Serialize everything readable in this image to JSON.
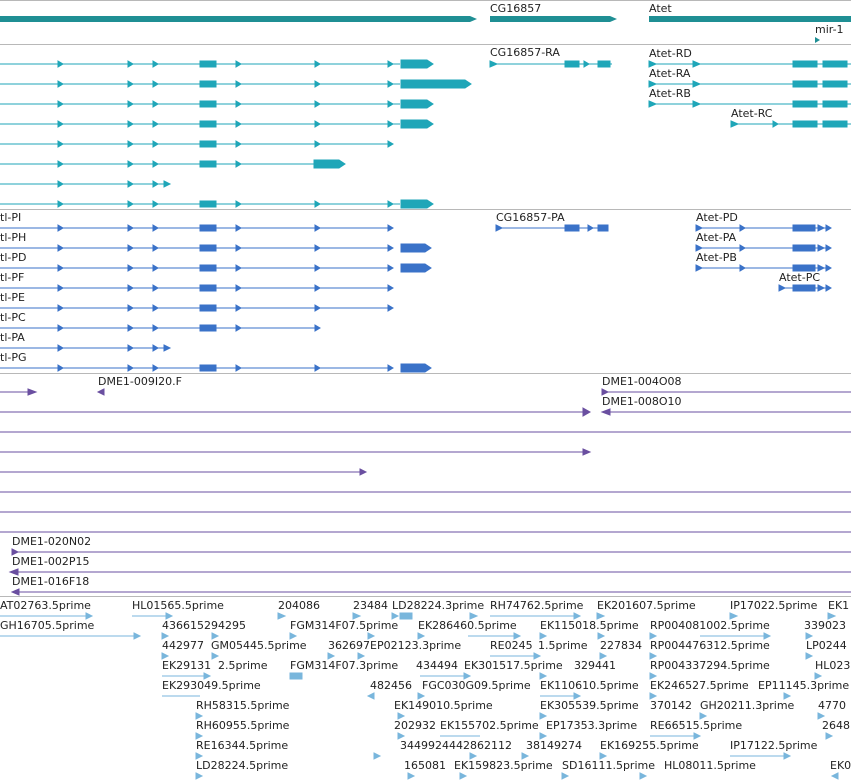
{
  "colors": {
    "gene": "#1f8f94",
    "mrna_a": "#1fa6b8",
    "mrna_b": "#3a72c8",
    "clone": "#6a4fa0",
    "est": "#79b6dc",
    "divider": "#b8b8b8"
  },
  "genes": {
    "labels": [
      "CG16857",
      "Atet",
      "mir-1"
    ]
  },
  "transcripts_a": {
    "labels": [
      "CG16857-RA",
      "Atet-RD",
      "Atet-RA",
      "Atet-RB",
      "Atet-RC"
    ]
  },
  "transcripts_b": {
    "labels": [
      "tl-PI",
      "tl-PH",
      "tl-PD",
      "tl-PF",
      "tl-PE",
      "tl-PC",
      "tl-PA",
      "tl-PG",
      "CG16857-PA",
      "Atet-PD",
      "Atet-PA",
      "Atet-PB",
      "Atet-PC"
    ]
  },
  "clones": {
    "labels": [
      "DME1-009I20.F",
      "DME1-004O08",
      "DME1-008O10",
      "DME1-020N02",
      "DME1-002P15",
      "DME1-016F18"
    ]
  },
  "ests": {
    "labels": [
      "AT02763.5prime",
      "HL01565.5prime",
      "204086",
      "23484",
      "LD28224.3prime",
      "RH74762.5prime",
      "EK201607.5prime",
      "IP17022.5prime",
      "EK1",
      "GH16705.5prime",
      "436615294295",
      "FGM314F07.5prime",
      "EK286460.5prime",
      "EK115018.5prime",
      "RP004081002.5prime",
      "339023",
      "442977",
      "GM05445.5prime",
      "362697",
      "EP02123.3prime",
      "RE0245",
      "1.5prime",
      "227834",
      "RP004476312.5prime",
      "LP0244",
      "EK29131",
      "2.5prime",
      "FGM314F07.3prime",
      "434494",
      "EK301517.5prime",
      "329441",
      "RP004337294.5prime",
      "HL023",
      "EK293049.5prime",
      "482456",
      "FGC030G09.5prime",
      "EK110610.5prime",
      "EK246527.5prime",
      "EP11145.3prime",
      "RH58315.5prime",
      "EK149010.5prime",
      "EK305539.5prime",
      "370142",
      "GH20211.3prime",
      "4770",
      "RH60955.5prime",
      "202932",
      "EK155702.5prime",
      "EP17353.3prime",
      "RE66515.5prime",
      "2648",
      "RE16344.5prime",
      "3449924442862112",
      "38149274",
      "EK169255.5prime",
      "IP17122.5prime",
      "LD28224.5prime",
      "165081",
      "EK159823.5prime",
      "SD16111.5prime",
      "HL08011.5prime",
      "EK0"
    ]
  }
}
